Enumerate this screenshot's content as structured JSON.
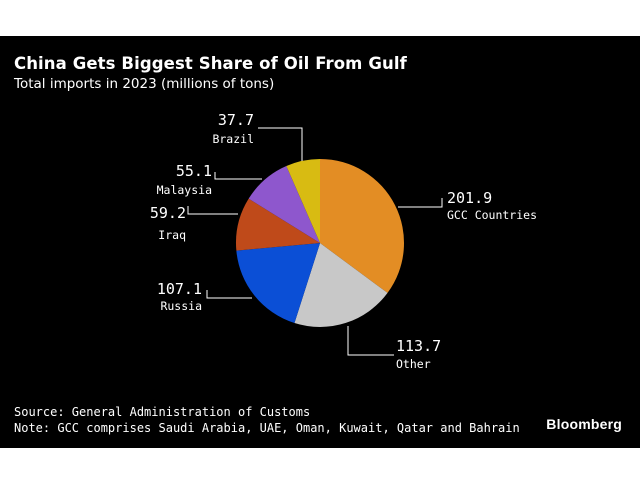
{
  "colors": {
    "background": "#000000",
    "text": "#ffffff",
    "leader_line": "#ffffff",
    "gcc": "#e38d24",
    "other": "#c8c8c8",
    "russia": "#0b4fd6",
    "iraq": "#bf4a1a",
    "malaysia": "#8e57cd",
    "brazil": "#d8bb12"
  },
  "chart_data": {
    "type": "pie",
    "title": "China Gets Biggest Share of Oil From Gulf",
    "subtitle": "Total imports in 2023 (millions of tons)",
    "unit": "millions of tons",
    "start": "12 o'clock, clockwise",
    "slices": [
      {
        "label": "GCC Countries",
        "value": 201.9,
        "value_text": "201.9",
        "color_key": "gcc"
      },
      {
        "label": "Other",
        "value": 113.7,
        "value_text": "113.7",
        "color_key": "other"
      },
      {
        "label": "Russia",
        "value": 107.1,
        "value_text": "107.1",
        "color_key": "russia"
      },
      {
        "label": "Iraq",
        "value": 59.2,
        "value_text": "59.2",
        "color_key": "iraq"
      },
      {
        "label": "Malaysia",
        "value": 55.1,
        "value_text": "55.1",
        "color_key": "malaysia"
      },
      {
        "label": "Brazil",
        "value": 37.7,
        "value_text": "37.7",
        "color_key": "brazil"
      }
    ]
  },
  "footer": {
    "source": "Source: General Administration of Customs",
    "note": "Note: GCC comprises Saudi Arabia, UAE, Oman, Kuwait, Qatar and Bahrain"
  },
  "brand": "Bloomberg"
}
